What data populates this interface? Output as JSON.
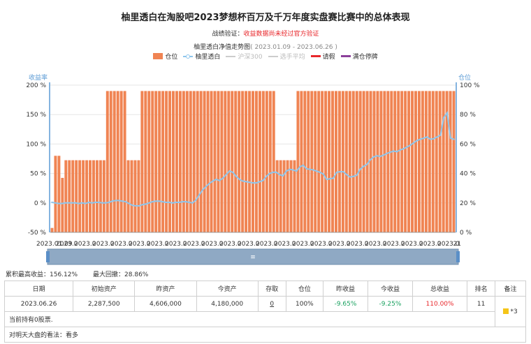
{
  "title": "柚里透白在淘股吧2023梦想杯百万及千万年度实盘赛比赛中的总体表现",
  "verify": {
    "label": "战绩验证：",
    "text": "收益数据尚未经过官方验证"
  },
  "subtitle": {
    "text": "柚里透白净值走势图",
    "range": "( 2023.01.09 - 2023.06.26 )"
  },
  "legend": [
    {
      "label": "仓位",
      "type": "bar",
      "color": "#f08453",
      "active": true
    },
    {
      "label": "柚里透白",
      "type": "line",
      "color": "#8ec6ec",
      "active": true
    },
    {
      "label": "沪深300",
      "type": "line",
      "color": "#cccccc",
      "active": false
    },
    {
      "label": "选手平均",
      "type": "line",
      "color": "#cccccc",
      "active": false
    },
    {
      "label": "请假",
      "type": "line",
      "color": "#e8272b",
      "active": true
    },
    {
      "label": "满仓停牌",
      "type": "line",
      "color": "#8b3f9a",
      "active": true
    }
  ],
  "chart_data": {
    "type": "bar+line",
    "left_axis": {
      "label": "收益率",
      "ticks": [
        "200 %",
        "150 %",
        "100 %",
        "50 %",
        "0 %",
        "-50 %"
      ],
      "range": [
        -50,
        200
      ]
    },
    "right_axis": {
      "label": "仓位",
      "ticks": [
        "100 %",
        "80 %",
        "60 %",
        "40 %",
        "20 %",
        "0 %"
      ],
      "range": [
        0,
        100
      ]
    },
    "x_range": [
      "2023.01.09",
      "2023.06.26"
    ],
    "x_tick_labels": [
      "2023.01.09",
      "2023.06.21"
    ],
    "position_series": {
      "name": "仓位",
      "values": [
        3,
        52,
        52,
        37,
        49,
        49,
        49,
        49,
        49,
        49,
        49,
        49,
        49,
        49,
        49,
        49,
        96,
        96,
        96,
        96,
        96,
        96,
        49,
        49,
        49,
        49,
        96,
        96,
        96,
        96,
        96,
        96,
        96,
        96,
        96,
        96,
        96,
        96,
        96,
        96,
        96,
        96,
        96,
        96,
        96,
        96,
        96,
        96,
        96,
        96,
        96,
        96,
        96,
        96,
        96,
        96,
        96,
        96,
        96,
        96,
        96,
        96,
        96,
        96,
        96,
        49,
        49,
        49,
        49,
        49,
        49,
        96,
        96,
        96,
        96,
        96,
        96,
        96,
        96,
        96,
        96,
        96,
        96,
        96,
        96,
        96,
        96,
        96,
        96,
        96,
        96,
        96,
        96,
        96,
        96,
        96,
        96,
        96,
        96,
        96,
        96,
        96,
        96,
        96,
        96,
        96,
        96,
        96,
        96,
        96,
        96,
        96,
        96,
        96,
        96,
        96,
        96
      ]
    },
    "return_series": {
      "name": "柚里透白",
      "values": [
        1,
        0,
        -1,
        -1,
        0,
        0,
        0,
        0,
        -1,
        0,
        -1,
        1,
        0,
        1,
        1,
        0,
        0,
        1,
        3,
        4,
        4,
        3,
        2,
        -1,
        -4,
        -5,
        -5,
        -3,
        -2,
        0,
        2,
        3,
        3,
        2,
        1,
        1,
        0,
        1,
        1,
        2,
        2,
        1,
        0,
        5,
        14,
        22,
        28,
        33,
        37,
        40,
        38,
        42,
        48,
        54,
        52,
        45,
        40,
        37,
        36,
        35,
        34,
        34,
        36,
        38,
        45,
        50,
        52,
        52,
        48,
        46,
        54,
        57,
        56,
        54,
        61,
        64,
        58,
        57,
        56,
        54,
        52,
        49,
        40,
        41,
        42,
        52,
        53,
        53,
        48,
        44,
        45,
        47,
        57,
        62,
        65,
        73,
        78,
        80,
        79,
        81,
        84,
        86,
        88,
        87,
        90,
        92,
        95,
        98,
        102,
        106,
        108,
        110,
        112,
        108,
        109,
        112,
        115,
        145,
        153,
        110,
        108
      ]
    },
    "y_range_left": [
      -50,
      200
    ],
    "y_range_right": [
      0,
      100
    ],
    "gridlines": true
  },
  "stats": {
    "max_return": "累积最高收益：156.12%",
    "max_drawdown": "最大回撤：28.86%"
  },
  "table": {
    "headers": [
      "日期",
      "初始资产",
      "昨资产",
      "今资产",
      "存取",
      "仓位",
      "昨收益",
      "今收益",
      "总收益",
      "排名",
      "备注"
    ],
    "row": {
      "date": "2023.06.26",
      "initial": "2,287,500",
      "yesterday": "4,606,000",
      "today": "4,180,000",
      "deposit": "0",
      "position": "100%",
      "yesterday_return": "-9.65%",
      "today_return": "-9.25%",
      "total_return": "110.00%",
      "rank": "11",
      "note": "*3"
    },
    "holdings": "当前持有0股票.",
    "outlook": "对明天大盘的看法：看多"
  }
}
